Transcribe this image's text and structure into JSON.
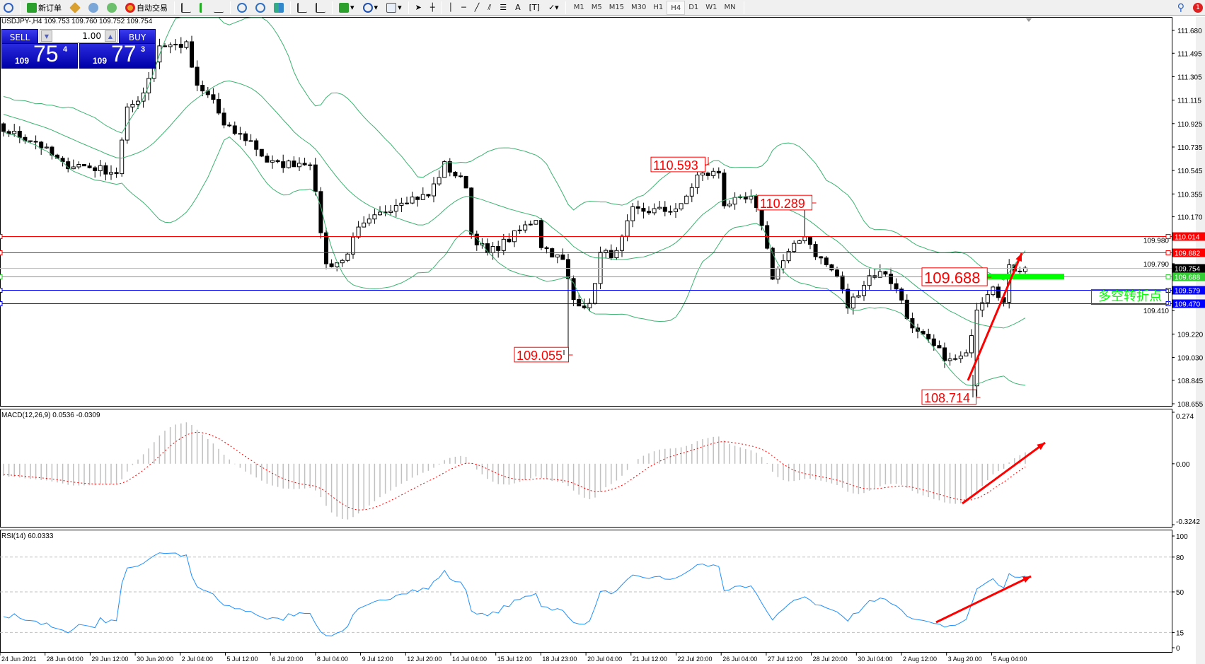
{
  "toolbar": {
    "new_order": "新订单",
    "auto_trading": "自动交易",
    "timeframes": [
      "M1",
      "M5",
      "M15",
      "M30",
      "H1",
      "H4",
      "D1",
      "W1",
      "MN"
    ],
    "active_timeframe": "H4",
    "notification_count": "1"
  },
  "chart": {
    "symbol_line": "USDJPY-,H4  109.753 109.760 109.752 109.754",
    "trade_panel": {
      "sell": "SELL",
      "buy": "BUY",
      "lot": "1.00",
      "bid_small": "109",
      "bid_big": "75",
      "bid_pip": "4",
      "ask_small": "109",
      "ask_big": "77",
      "ask_pip": "3"
    },
    "price_ticks": [
      "111.680",
      "111.495",
      "111.305",
      "111.115",
      "110.925",
      "110.735",
      "110.545",
      "110.355",
      "110.170",
      "109.980",
      "109.790",
      "109.410",
      "109.220",
      "109.030",
      "108.845",
      "108.655"
    ],
    "hlines": [
      {
        "price": "110.014",
        "color": "#ff0000"
      },
      {
        "price": "109.882",
        "color": "#ff0000"
      },
      {
        "price": "109.754",
        "color": "#000000",
        "line": "#c0c0c0"
      },
      {
        "price": "109.688",
        "color": "#32cd32",
        "line": "#32cd32"
      },
      {
        "price": "109.579",
        "color": "#0000ff"
      },
      {
        "price": "109.470",
        "color": "#0000ff"
      }
    ],
    "annotations": [
      "110.593",
      "110.289",
      "109.055",
      "108.714",
      "109.688"
    ],
    "turning_point_label": "多空转折点",
    "time_labels": [
      "24 Jun 2021",
      "28 Jun 04:00",
      "29 Jun 12:00",
      "30 Jun 20:00",
      "2 Jul 04:00",
      "5 Jul 12:00",
      "6 Jul 20:00",
      "8 Jul 04:00",
      "9 Jul 12:00",
      "12 Jul 20:00",
      "14 Jul 04:00",
      "15 Jul 12:00",
      "18 Jul 23:00",
      "20 Jul 04:00",
      "21 Jul 12:00",
      "22 Jul 20:00",
      "26 Jul 04:00",
      "27 Jul 12:00",
      "28 Jul 20:00",
      "30 Jul 04:00",
      "2 Aug 12:00",
      "3 Aug 20:00",
      "5 Aug 04:00"
    ]
  },
  "macd": {
    "label": "MACD(12,26,9) 0.0536 -0.0309",
    "ticks": [
      "0.274",
      "0.00",
      "-0.3242"
    ]
  },
  "rsi": {
    "label": "RSI(14) 60.0333",
    "ticks": [
      "100",
      "80",
      "50",
      "15",
      "0"
    ]
  },
  "colors": {
    "bands": "#3cb371",
    "signal": "#ff0000",
    "rsi": "#1e90ff",
    "arrow": "#ff0000",
    "bull_fill": "#ffffff",
    "bear_fill": "#000000"
  }
}
